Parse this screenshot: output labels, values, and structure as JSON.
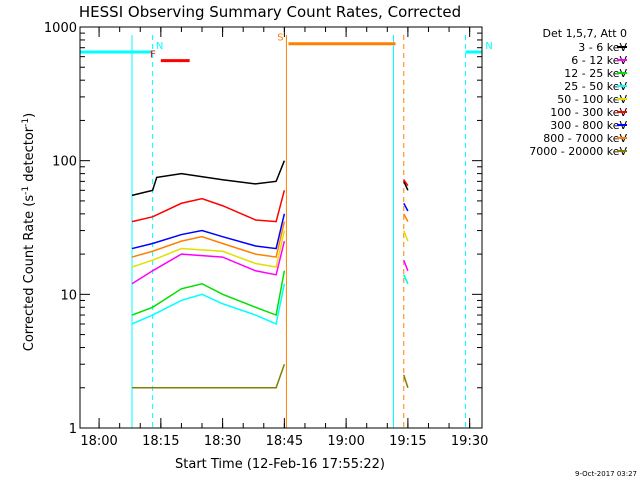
{
  "chart_data": {
    "type": "line",
    "title": "HESSI Observing Summary Count Rates, Corrected",
    "xlabel": "Start Time (12-Feb-16 17:55:22)",
    "ylabel": "Corrected Count Rate (s⁻¹ detector⁻¹)",
    "ylabel_main": "Corrected Count Rate (s",
    "ylabel_mid": " detector",
    "ylabel_close": ")",
    "ylabel_sup": "-1",
    "yscale": "log",
    "ylim": [
      1,
      1000
    ],
    "xlim": [
      "17:55:22",
      "19:33:00"
    ],
    "x_ticks": [
      "18:00",
      "18:15",
      "18:30",
      "18:45",
      "19:00",
      "19:15",
      "19:30"
    ],
    "y_ticks": [
      "1",
      "10",
      "100",
      "1000"
    ],
    "legend_title": "Det 1,5,7, Att 0",
    "legend_position": "right",
    "timestamp": "9-Oct-2017 03:27",
    "series": [
      {
        "name": "3 - 6 keV",
        "color": "#000000",
        "values": [
          {
            "t": "18:08",
            "v": 55
          },
          {
            "t": "18:13",
            "v": 60
          },
          {
            "t": "18:14",
            "v": 75
          },
          {
            "t": "18:20",
            "v": 80
          },
          {
            "t": "18:30",
            "v": 72
          },
          {
            "t": "18:38",
            "v": 67
          },
          {
            "t": "18:43",
            "v": 70
          },
          {
            "t": "18:45",
            "v": 100
          },
          {
            "t": "19:14",
            "v": 70
          },
          {
            "t": "19:15",
            "v": 60
          }
        ]
      },
      {
        "name": "6 - 12 keV",
        "color": "#ff00ff",
        "values": [
          {
            "t": "18:08",
            "v": 12
          },
          {
            "t": "18:13",
            "v": 15
          },
          {
            "t": "18:20",
            "v": 20
          },
          {
            "t": "18:30",
            "v": 19
          },
          {
            "t": "18:38",
            "v": 15
          },
          {
            "t": "18:43",
            "v": 14
          },
          {
            "t": "18:45",
            "v": 25
          },
          {
            "t": "19:14",
            "v": 18
          },
          {
            "t": "19:15",
            "v": 15
          }
        ]
      },
      {
        "name": "12 - 25 keV",
        "color": "#00e000",
        "values": [
          {
            "t": "18:08",
            "v": 7
          },
          {
            "t": "18:13",
            "v": 8
          },
          {
            "t": "18:20",
            "v": 11
          },
          {
            "t": "18:25",
            "v": 12
          },
          {
            "t": "18:30",
            "v": 10
          },
          {
            "t": "18:38",
            "v": 8
          },
          {
            "t": "18:43",
            "v": 7
          },
          {
            "t": "18:45",
            "v": 15
          },
          {
            "t": "19:14",
            "v": 14
          },
          {
            "t": "19:15",
            "v": 12
          }
        ]
      },
      {
        "name": "25 - 50 keV",
        "color": "#00ffff",
        "values": [
          {
            "t": "18:08",
            "v": 6
          },
          {
            "t": "18:13",
            "v": 7
          },
          {
            "t": "18:20",
            "v": 9
          },
          {
            "t": "18:25",
            "v": 10
          },
          {
            "t": "18:30",
            "v": 8.5
          },
          {
            "t": "18:38",
            "v": 7
          },
          {
            "t": "18:43",
            "v": 6
          },
          {
            "t": "18:45",
            "v": 12
          },
          {
            "t": "19:14",
            "v": 14
          },
          {
            "t": "19:15",
            "v": 12
          }
        ]
      },
      {
        "name": "50 - 100 keV",
        "color": "#e0e000",
        "values": [
          {
            "t": "18:08",
            "v": 16
          },
          {
            "t": "18:13",
            "v": 18
          },
          {
            "t": "18:20",
            "v": 22
          },
          {
            "t": "18:30",
            "v": 21
          },
          {
            "t": "18:38",
            "v": 17
          },
          {
            "t": "18:43",
            "v": 16
          },
          {
            "t": "18:45",
            "v": 30
          },
          {
            "t": "19:14",
            "v": 30
          },
          {
            "t": "19:15",
            "v": 25
          }
        ]
      },
      {
        "name": "100 - 300 keV",
        "color": "#ff0000",
        "values": [
          {
            "t": "18:08",
            "v": 35
          },
          {
            "t": "18:13",
            "v": 38
          },
          {
            "t": "18:20",
            "v": 48
          },
          {
            "t": "18:25",
            "v": 52
          },
          {
            "t": "18:30",
            "v": 46
          },
          {
            "t": "18:38",
            "v": 36
          },
          {
            "t": "18:43",
            "v": 35
          },
          {
            "t": "18:45",
            "v": 60
          },
          {
            "t": "19:14",
            "v": 72
          },
          {
            "t": "19:15",
            "v": 65
          }
        ]
      },
      {
        "name": "300 - 800 keV",
        "color": "#0000ff",
        "values": [
          {
            "t": "18:08",
            "v": 22
          },
          {
            "t": "18:13",
            "v": 24
          },
          {
            "t": "18:20",
            "v": 28
          },
          {
            "t": "18:25",
            "v": 30
          },
          {
            "t": "18:30",
            "v": 27
          },
          {
            "t": "18:38",
            "v": 23
          },
          {
            "t": "18:43",
            "v": 22
          },
          {
            "t": "18:45",
            "v": 40
          },
          {
            "t": "19:14",
            "v": 48
          },
          {
            "t": "19:15",
            "v": 42
          }
        ]
      },
      {
        "name": "800 - 7000 keV",
        "color": "#ff8000",
        "values": [
          {
            "t": "18:08",
            "v": 19
          },
          {
            "t": "18:13",
            "v": 21
          },
          {
            "t": "18:20",
            "v": 25
          },
          {
            "t": "18:25",
            "v": 27
          },
          {
            "t": "18:30",
            "v": 24
          },
          {
            "t": "18:38",
            "v": 20
          },
          {
            "t": "18:43",
            "v": 19
          },
          {
            "t": "18:45",
            "v": 35
          },
          {
            "t": "19:14",
            "v": 40
          },
          {
            "t": "19:15",
            "v": 35
          }
        ]
      },
      {
        "name": "7000 - 20000 keV",
        "color": "#808000",
        "values": [
          {
            "t": "18:08",
            "v": 2
          },
          {
            "t": "18:13",
            "v": 2
          },
          {
            "t": "18:20",
            "v": 2
          },
          {
            "t": "18:30",
            "v": 2
          },
          {
            "t": "18:38",
            "v": 2
          },
          {
            "t": "18:43",
            "v": 2
          },
          {
            "t": "18:45",
            "v": 3
          },
          {
            "t": "19:14",
            "v": 2.5
          },
          {
            "t": "19:15",
            "v": 2
          }
        ]
      }
    ],
    "annotations": [
      {
        "label": "N",
        "color": "#00ffff",
        "t_start": "17:55:22",
        "t_end": "18:13:00",
        "level": 650,
        "kind": "night"
      },
      {
        "label": "N",
        "color": "#00ffff",
        "t_start": "19:29:00",
        "t_end": "19:33:00",
        "level": 650,
        "kind": "night"
      },
      {
        "label": "F",
        "color": "#ff0000",
        "t_start": "18:15:00",
        "t_end": "18:22:00",
        "level": 560,
        "kind": "flare"
      },
      {
        "label": "S",
        "color": "#ff8000",
        "t_start": "18:46:00",
        "t_end": "19:12:00",
        "level": 750,
        "kind": "saa"
      }
    ],
    "vlines": [
      {
        "t": "18:08:00",
        "color": "#00ffff",
        "style": "solid"
      },
      {
        "t": "18:13:00",
        "color": "#00ffff",
        "style": "dashed"
      },
      {
        "t": "18:45:30",
        "color": "#ff8000",
        "style": "solid"
      },
      {
        "t": "19:11:30",
        "color": "#00ffff",
        "style": "solid"
      },
      {
        "t": "19:14:00",
        "color": "#ff8000",
        "style": "dashed"
      },
      {
        "t": "19:29:00",
        "color": "#00ffff",
        "style": "dashed"
      }
    ]
  }
}
